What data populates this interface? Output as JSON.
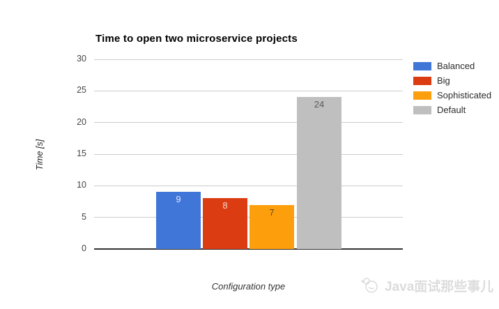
{
  "page": {
    "background": "#ffffff"
  },
  "chart_data": {
    "type": "bar",
    "title": "Time to open two microservice projects",
    "xlabel": "Configuration type",
    "ylabel": "Time [s]",
    "categories": [
      "Balanced",
      "Big",
      "Sophisticated",
      "Default"
    ],
    "values": [
      9,
      8,
      7,
      24
    ],
    "colors": [
      "#4176D9",
      "#DC3C12",
      "#FD9E0D",
      "#BFBFBF"
    ],
    "value_label_colors": [
      "#DCE7F8",
      "#F6D7CD",
      "#5C4A1A",
      "#595959"
    ],
    "ylim": [
      0,
      30
    ],
    "yticks": [
      0,
      5,
      10,
      15,
      20,
      25,
      30
    ],
    "grid": true,
    "legend_position": "right",
    "gridline_color": "#cccccc",
    "baseline_color": "#333333"
  },
  "watermark": {
    "text": "Java面试那些事儿",
    "logo": "bird-sketch-icon",
    "color": "#dcdcdc"
  }
}
